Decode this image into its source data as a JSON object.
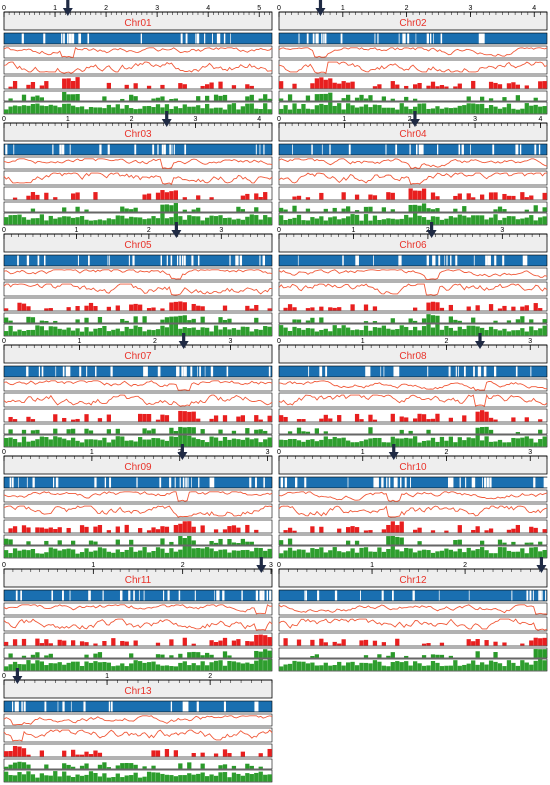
{
  "colors": {
    "density": "#1a6fb0",
    "line": "#f05a3a",
    "red_bars": "#e81f1f",
    "green1": "#2a9a2a",
    "green2": "#2e9e2e",
    "ruler_bg": "#eeeeee",
    "label": "#e8332a",
    "arrow": "#1f2a44"
  },
  "icons": {
    "marker": "down-arrow-icon"
  },
  "chromosomes": [
    {
      "id": "chr01",
      "label": "Chr01",
      "length": 5.25,
      "arrow_mb": 1.25,
      "ticks": [
        0,
        1,
        2,
        3,
        4,
        5
      ]
    },
    {
      "id": "chr02",
      "label": "Chr02",
      "length": 4.2,
      "arrow_mb": 0.65,
      "ticks": [
        0,
        1,
        2,
        3,
        4
      ]
    },
    {
      "id": "chr03",
      "label": "Chr03",
      "length": 4.2,
      "arrow_mb": 2.55,
      "ticks": [
        0,
        1,
        2,
        3,
        4
      ]
    },
    {
      "id": "chr04",
      "label": "Chr04",
      "length": 4.1,
      "arrow_mb": 2.08,
      "ticks": [
        0,
        1,
        2,
        3,
        4
      ]
    },
    {
      "id": "chr05",
      "label": "Chr05",
      "length": 3.7,
      "arrow_mb": 2.38,
      "ticks": [
        0,
        1,
        2,
        3
      ]
    },
    {
      "id": "chr06",
      "label": "Chr06",
      "length": 3.6,
      "arrow_mb": 2.05,
      "ticks": [
        0,
        1,
        2,
        3
      ]
    },
    {
      "id": "chr07",
      "label": "Chr07",
      "length": 3.55,
      "arrow_mb": 2.38,
      "ticks": [
        0,
        1,
        2,
        3
      ]
    },
    {
      "id": "chr08",
      "label": "Chr08",
      "length": 3.2,
      "arrow_mb": 2.4,
      "ticks": [
        0,
        1,
        2,
        3
      ]
    },
    {
      "id": "chr09",
      "label": "Chr09",
      "length": 3.05,
      "arrow_mb": 2.03,
      "ticks": [
        0,
        1,
        2,
        3
      ]
    },
    {
      "id": "chr10",
      "label": "Chr10",
      "length": 3.2,
      "arrow_mb": 1.37,
      "ticks": [
        0,
        1,
        2,
        3
      ]
    },
    {
      "id": "chr11",
      "label": "Chr11",
      "length": 3.0,
      "arrow_mb": 2.88,
      "ticks": [
        0,
        1,
        2,
        3
      ]
    },
    {
      "id": "chr12",
      "label": "Chr12",
      "length": 2.88,
      "arrow_mb": 2.82,
      "ticks": [
        0,
        1,
        2
      ]
    },
    {
      "id": "chr13",
      "label": "Chr13",
      "length": 2.6,
      "arrow_mb": 0.13,
      "ticks": [
        0,
        1,
        2
      ]
    }
  ]
}
